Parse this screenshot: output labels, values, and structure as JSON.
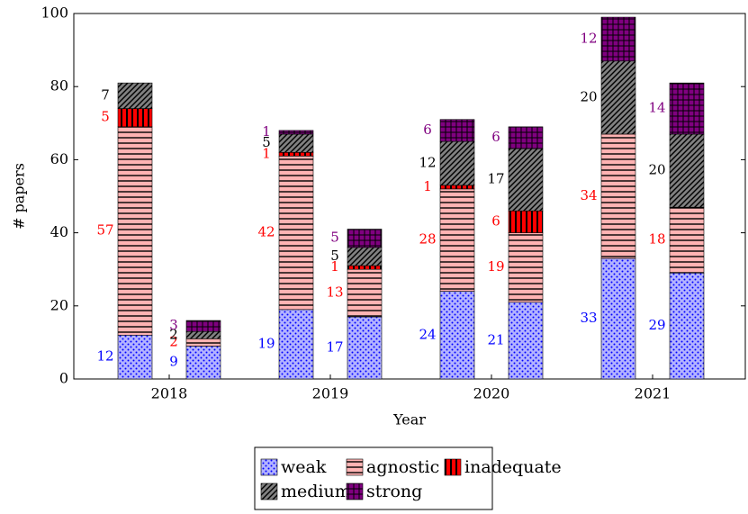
{
  "chart_data": {
    "type": "grouped_stacked_bar",
    "xlabel": "Year",
    "ylabel": "# papers",
    "categories": [
      "2018",
      "2019",
      "2020",
      "2021"
    ],
    "series": [
      {
        "name": "weak",
        "color": "#b3b3ff",
        "pattern_color": "#0000ff",
        "label_color": "#0000ff",
        "values": [
          [
            12,
            9
          ],
          [
            19,
            17
          ],
          [
            24,
            21
          ],
          [
            33,
            29
          ]
        ]
      },
      {
        "name": "agnostic",
        "color": "#ffb3b3",
        "pattern_color": "#000000",
        "label_color": "#ff0000",
        "values": [
          [
            57,
            2
          ],
          [
            42,
            13
          ],
          [
            28,
            19
          ],
          [
            34,
            18
          ]
        ]
      },
      {
        "name": "inadequate",
        "color": "#ff0000",
        "pattern_color": "#000000",
        "label_color": "#ff0000",
        "values": [
          [
            5,
            0
          ],
          [
            1,
            1
          ],
          [
            1,
            6
          ],
          [
            0,
            0
          ]
        ]
      },
      {
        "name": "medium",
        "color": "#808080",
        "pattern_color": "#000000",
        "label_color": "#000000",
        "values": [
          [
            7,
            2
          ],
          [
            5,
            5
          ],
          [
            12,
            17
          ],
          [
            20,
            20
          ]
        ]
      },
      {
        "name": "strong",
        "color": "#800080",
        "pattern_color": "#000000",
        "label_color": "#800080",
        "values": [
          [
            0,
            3
          ],
          [
            1,
            5
          ],
          [
            6,
            6
          ],
          [
            12,
            14
          ]
        ]
      }
    ],
    "ylim": [
      0,
      100
    ],
    "yticks": [
      0,
      20,
      40,
      60,
      80,
      100
    ]
  }
}
